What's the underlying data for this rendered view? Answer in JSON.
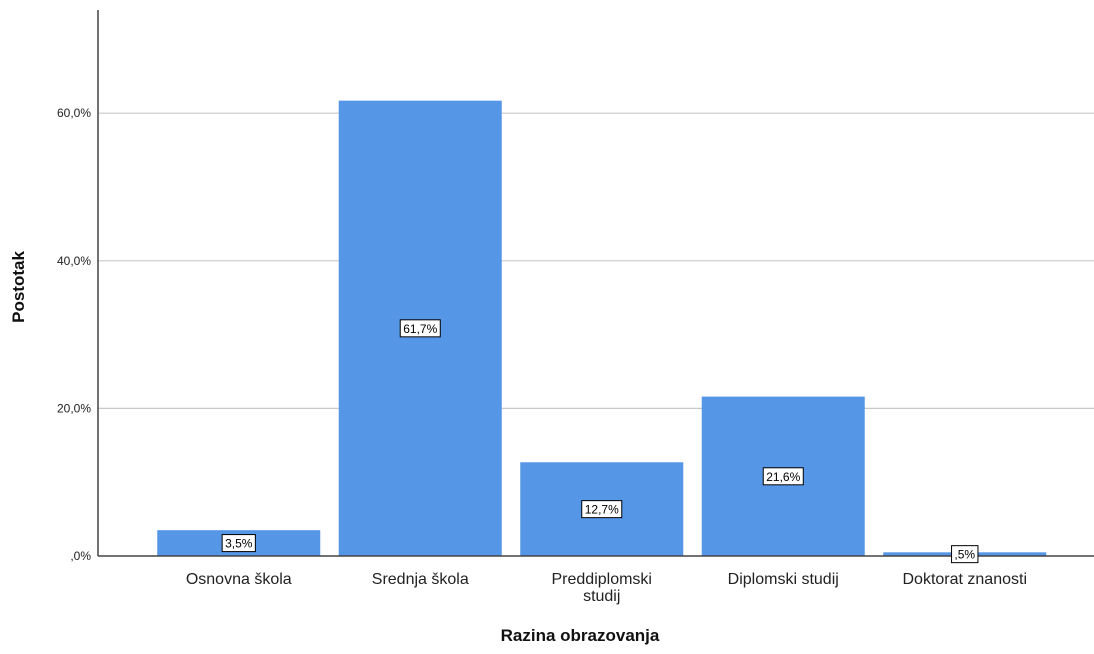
{
  "chart_data": {
    "type": "bar",
    "categories": [
      [
        "Osnovna škola"
      ],
      [
        "Srednja škola"
      ],
      [
        "Preddiplomski",
        "studij"
      ],
      [
        "Diplomski studij"
      ],
      [
        "Doktorat znanosti"
      ]
    ],
    "values": [
      3.5,
      61.7,
      12.7,
      21.6,
      0.5
    ],
    "data_labels": [
      "3,5%",
      "61,7%",
      "12,7%",
      "21,6%",
      ",5%"
    ],
    "xlabel": "Razina obrazovanja",
    "ylabel": "Postotak",
    "ylim": [
      0,
      75
    ],
    "yticks": [
      0,
      20,
      40,
      60
    ],
    "ytick_labels": [
      ",0%",
      "20,0%",
      "40,0%",
      "60,0%"
    ],
    "grid": true,
    "bar_color": "#5596e6",
    "grid_color": "#c8c8c8",
    "axis_color": "#444444"
  }
}
